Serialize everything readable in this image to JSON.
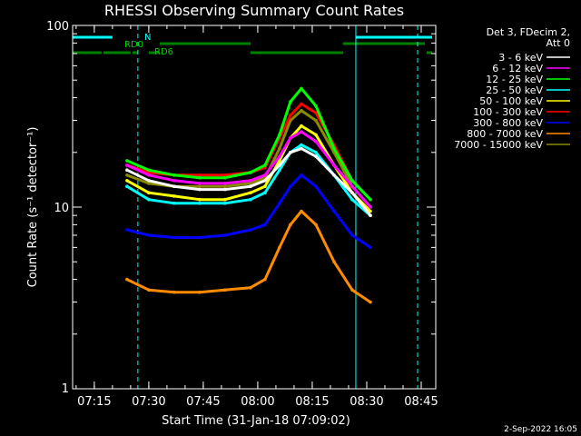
{
  "chart_data": {
    "type": "line",
    "title": "RHESSI Observing Summary Count Rates",
    "xlabel": "Start Time (31-Jan-18 07:09:02)",
    "ylabel": "Count Rate (s⁻¹ detector⁻¹)",
    "yscale": "log",
    "ylim": [
      1,
      100
    ],
    "xlim": [
      "07:09:02",
      "08:49:00"
    ],
    "x_ticks": [
      "07:15",
      "07:30",
      "07:45",
      "08:00",
      "08:15",
      "08:30",
      "08:45"
    ],
    "y_ticks": [
      "1",
      "10",
      "100"
    ],
    "legend_placement": "right",
    "legend_title": [
      "Det 3, FDecim 2,",
      "Att 0"
    ],
    "series": [
      {
        "name": "3 - 6 keV",
        "color": "#ffffff",
        "values": [
          16,
          14,
          13,
          12.5,
          12.5,
          13,
          14,
          17,
          20,
          21,
          19,
          15,
          12,
          9
        ]
      },
      {
        "name": "6 - 12 keV",
        "color": "#ff00ff",
        "values": [
          17,
          15,
          14,
          13.5,
          13.5,
          14,
          15,
          19,
          24,
          26,
          23,
          17,
          13,
          10
        ]
      },
      {
        "name": "12 - 25 keV",
        "color": "#00ff00",
        "values": [
          18,
          16,
          15,
          14.5,
          14.5,
          15.5,
          17,
          25,
          38,
          45,
          36,
          21,
          14,
          11
        ]
      },
      {
        "name": "25 - 50 keV",
        "color": "#00ffff",
        "values": [
          13,
          11,
          10.5,
          10.5,
          10.5,
          11,
          12,
          16,
          20,
          22,
          20,
          15,
          11,
          9
        ]
      },
      {
        "name": "50 - 100 keV",
        "color": "#ffff00",
        "values": [
          14,
          12,
          11.5,
          11,
          11,
          12,
          13,
          18,
          24,
          28,
          25,
          17,
          12,
          9.5
        ]
      },
      {
        "name": "100 - 300 keV",
        "color": "#ff0000",
        "values": [
          17,
          15.5,
          15,
          15,
          15,
          15.5,
          16.5,
          24,
          32,
          37,
          33,
          22,
          14,
          11
        ]
      },
      {
        "name": "300 - 800 keV",
        "color": "#0000ff",
        "values": [
          7.5,
          7,
          6.8,
          6.8,
          7,
          7.5,
          8,
          10.5,
          13,
          15,
          13,
          9.5,
          7,
          6
        ]
      },
      {
        "name": "800 - 7000 keV",
        "color": "#ff8c00",
        "values": [
          4,
          3.5,
          3.4,
          3.4,
          3.5,
          3.6,
          4,
          6,
          8,
          9.5,
          8,
          5,
          3.5,
          3
        ]
      },
      {
        "name": "7000 - 15000 keV",
        "color": "#8b8b00",
        "values": [
          15,
          13.5,
          13,
          13,
          13,
          13.5,
          14.5,
          21,
          30,
          34,
          30,
          20,
          13,
          10
        ]
      }
    ],
    "x": [
      "07:24",
      "07:30",
      "07:37",
      "07:44",
      "07:51",
      "07:58",
      "08:02",
      "08:06",
      "08:09",
      "08:12",
      "08:16",
      "08:21",
      "08:26",
      "08:31"
    ],
    "annotations": {
      "RD0": "RD0",
      "RD6": "RD6",
      "N": "N"
    },
    "timestamp": "2-Sep-2022 16:05"
  }
}
